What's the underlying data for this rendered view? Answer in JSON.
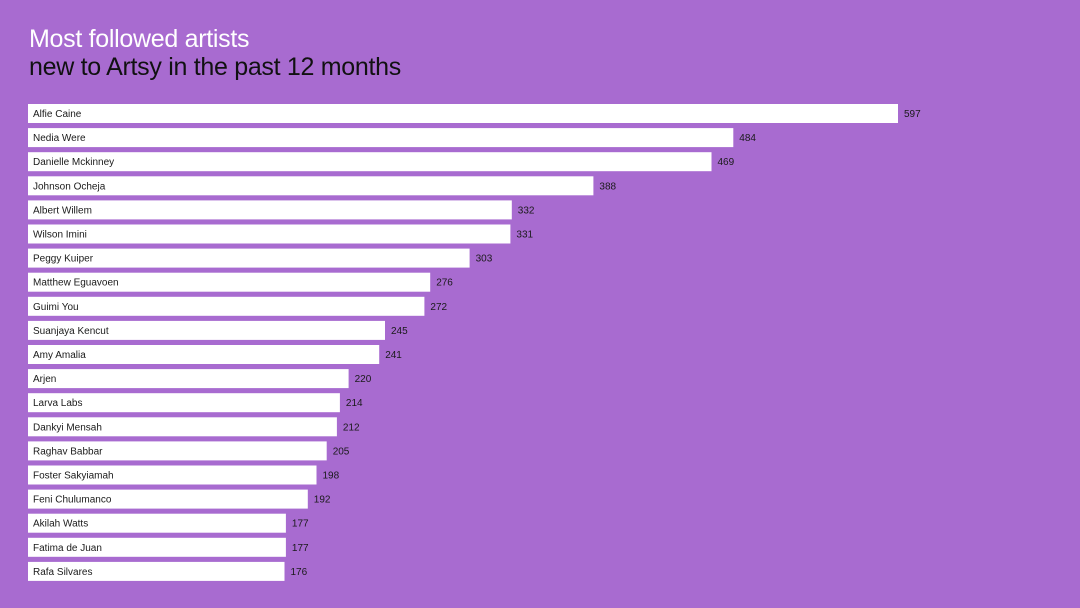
{
  "colors": {
    "background": "#a86bd0",
    "title_primary": "#ffffff",
    "title_secondary": "#111111",
    "bar_fill": "#ffffff",
    "bar_label": "#1a1a1a",
    "value_label": "#1a1a1a"
  },
  "chart_data": {
    "type": "bar",
    "orientation": "horizontal",
    "title": "Most followed artists",
    "subtitle": "new to Artsy in the past 12 months",
    "xlabel": "",
    "ylabel": "",
    "grid": false,
    "legend": "none",
    "xlim": [
      0,
      597
    ],
    "categories": [
      "Alfie Caine",
      "Nedia Were",
      "Danielle Mckinney",
      "Johnson Ocheja",
      "Albert Willem",
      "Wilson Imini",
      "Peggy Kuiper",
      "Matthew Eguavoen",
      "Guimi You",
      "Suanjaya Kencut",
      "Amy Amalia",
      "Arjen",
      "Larva Labs",
      "Dankyi Mensah",
      "Raghav Babbar",
      "Foster Sakyiamah",
      "Feni Chulumanco",
      "Akilah Watts",
      "Fatima de Juan",
      "Rafa Silvares"
    ],
    "values": [
      597,
      484,
      469,
      388,
      332,
      331,
      303,
      276,
      272,
      245,
      241,
      220,
      214,
      212,
      205,
      198,
      192,
      177,
      177,
      176
    ]
  }
}
